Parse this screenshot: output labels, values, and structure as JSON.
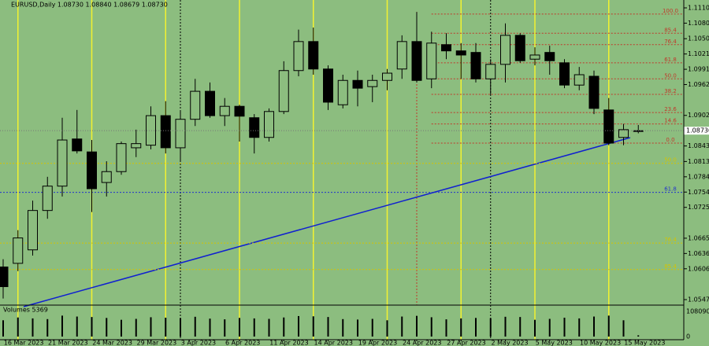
{
  "chart_data": {
    "type": "candlestick",
    "title": "EURUSD,Daily  1.08730 1.08840 1.08679 1.08730",
    "categories": [
      null,
      "16 Mar 2023",
      null,
      null,
      "21 Mar 2023",
      null,
      null,
      "24 Mar 2023",
      null,
      null,
      "29 Mar 2023",
      null,
      null,
      "3 Apr 2023",
      null,
      null,
      "6 Apr 2023",
      null,
      null,
      "11 Apr 2023",
      null,
      null,
      "14 Apr 2023",
      null,
      null,
      "19 Apr 2023",
      null,
      null,
      "24 Apr 2023",
      null,
      null,
      "27 Apr 2023",
      null,
      null,
      "2 May 2023",
      null,
      null,
      "5 May 2023",
      null,
      null,
      "10 May 2023",
      null,
      null,
      "15 May 2023"
    ],
    "open": [
      1.061,
      1.0617,
      1.0643,
      1.0719,
      1.0766,
      1.0857,
      1.0832,
      1.0773,
      1.0794,
      1.084,
      1.0845,
      1.0902,
      1.084,
      1.0895,
      1.0949,
      1.0902,
      1.092,
      1.0898,
      1.086,
      1.091,
      1.0989,
      1.1045,
      1.0992,
      1.0923,
      1.097,
      1.0958,
      1.097,
      1.0992,
      1.1045,
      1.0973,
      1.1039,
      1.1027,
      1.1024,
      1.0973,
      1.1001,
      1.1057,
      1.1011,
      1.1024,
      1.1004,
      1.0961,
      1.0978,
      1.0913,
      1.086,
      1.0873
    ],
    "high": [
      1.0625,
      1.0681,
      1.0738,
      1.0784,
      1.0898,
      1.0913,
      1.0855,
      1.0814,
      1.0852,
      1.0875,
      1.092,
      1.093,
      1.091,
      1.0973,
      1.0966,
      1.0936,
      1.0923,
      1.0905,
      1.0916,
      1.1007,
      1.1068,
      1.1072,
      1.0999,
      1.0981,
      1.0989,
      1.0981,
      1.0992,
      1.1057,
      1.1102,
      1.1064,
      1.1061,
      1.1042,
      1.1042,
      1.1011,
      1.108,
      1.1061,
      1.1034,
      1.1037,
      1.1011,
      1.0996,
      1.0989,
      1.0936,
      1.0886,
      1.0884
    ],
    "low": [
      1.0549,
      1.0602,
      1.0632,
      1.0703,
      1.0746,
      1.0829,
      1.0716,
      1.0746,
      1.0788,
      1.0822,
      1.0837,
      1.0829,
      1.0814,
      1.0882,
      1.0898,
      1.0882,
      1.0852,
      1.0829,
      1.0852,
      1.0905,
      1.0978,
      1.0981,
      1.0913,
      1.0916,
      1.092,
      1.0928,
      1.0951,
      1.0973,
      1.0966,
      1.0955,
      1.1011,
      1.0973,
      1.0966,
      1.0943,
      1.0966,
      1.1004,
      1.0999,
      1.0981,
      1.0955,
      1.0951,
      1.0905,
      1.0845,
      1.0845,
      1.08679
    ],
    "close": [
      1.0572,
      1.0666,
      1.0719,
      1.0766,
      1.0855,
      1.0834,
      1.0761,
      1.0794,
      1.0848,
      1.0848,
      1.0902,
      1.084,
      1.0895,
      1.0949,
      1.0902,
      1.092,
      1.0901,
      1.086,
      1.091,
      1.0989,
      1.1045,
      1.0992,
      1.0928,
      1.097,
      1.0955,
      1.097,
      1.0984,
      1.1045,
      1.097,
      1.1042,
      1.1027,
      1.1019,
      1.0973,
      1.1001,
      1.1057,
      1.1008,
      1.1019,
      1.1008,
      1.0961,
      1.0981,
      1.0916,
      1.0849,
      1.0875,
      1.0873
    ],
    "bull_color": "#8cbd7f",
    "bear_color": "#000000",
    "ylim": [
      1.0547,
      1.111
    ],
    "yticks": [
      {
        "value": 1.111,
        "label": "1.11100"
      },
      {
        "value": 1.10805,
        "label": "1.10805"
      },
      {
        "value": 1.10505,
        "label": "1.10505"
      },
      {
        "value": 1.1021,
        "label": "1.10210"
      },
      {
        "value": 1.09915,
        "label": "1.09915"
      },
      {
        "value": 1.0962,
        "label": "1.09620"
      },
      {
        "value": 1.09025,
        "label": "1.09025"
      },
      {
        "value": 1.08435,
        "label": "1.08435"
      },
      {
        "value": 1.08135,
        "label": "1.08135"
      },
      {
        "value": 1.0784,
        "label": "1.07840"
      },
      {
        "value": 1.07545,
        "label": "1.07545"
      },
      {
        "value": 1.0725,
        "label": "1.07250"
      },
      {
        "value": 1.06655,
        "label": "1.06655"
      },
      {
        "value": 1.0636,
        "label": "1.06360"
      },
      {
        "value": 1.06065,
        "label": "1.06065"
      },
      {
        "value": 1.0547,
        "label": "1.05470"
      }
    ],
    "current_price": {
      "value": 1.0873,
      "label": "1.08730"
    },
    "fib_levels": [
      {
        "label": "100.0",
        "value": 1.1098,
        "color": "#c0392b"
      },
      {
        "label": "85.4",
        "value": 1.1061,
        "color": "#c0392b"
      },
      {
        "label": "76.4",
        "value": 1.1039,
        "color": "#c0392b"
      },
      {
        "label": "61.8",
        "value": 1.1004,
        "color": "#c0392b"
      },
      {
        "label": "50.0",
        "value": 1.0973,
        "color": "#c0392b"
      },
      {
        "label": "38.2",
        "value": 1.0943,
        "color": "#c0392b"
      },
      {
        "label": "23.6",
        "value": 1.0908,
        "color": "#c0392b"
      },
      {
        "label": "14.6",
        "value": 1.0886,
        "color": "#c0392b"
      },
      {
        "label": "0.0",
        "value": 1.0849,
        "color": "#c0392b"
      },
      {
        "label": "50.0",
        "value": 1.081,
        "color": "#d4c400"
      },
      {
        "label": "61.8",
        "value": 1.0754,
        "color": "#2233cc"
      },
      {
        "label": "76.4",
        "value": 1.0656,
        "color": "#d4c400"
      },
      {
        "label": "85.4",
        "value": 1.0605,
        "color": "#d4c400"
      }
    ],
    "volume_title": "Volumes 5369",
    "volumes": [
      70000,
      82000,
      78000,
      75000,
      90000,
      86000,
      84000,
      80000,
      72000,
      76000,
      83000,
      81000,
      79000,
      85000,
      77000,
      74000,
      80000,
      78000,
      76000,
      82000,
      88000,
      87000,
      84000,
      75000,
      73000,
      76000,
      70000,
      86000,
      89000,
      83000,
      74000,
      78000,
      80000,
      79000,
      85000,
      84000,
      72000,
      76000,
      81000,
      78000,
      86000,
      90000,
      70000,
      5369
    ],
    "volume_ylim": [
      0,
      108090
    ],
    "volume_yticks": [
      108090,
      0
    ]
  }
}
